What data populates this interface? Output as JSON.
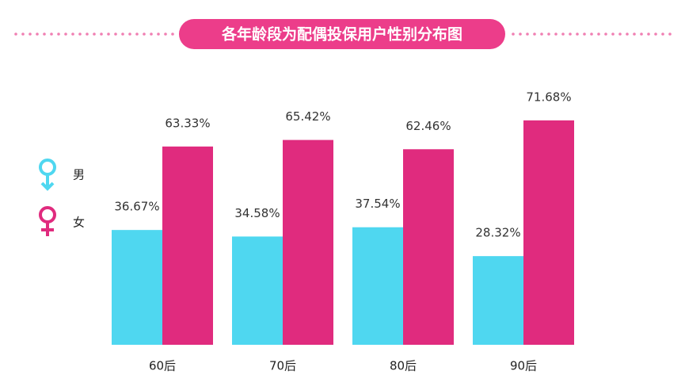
{
  "chart_data": {
    "type": "bar",
    "title": "各年龄段为配偶投保用户性别分布图",
    "categories": [
      "60后",
      "70后",
      "80后",
      "90后"
    ],
    "series": [
      {
        "name": "男",
        "color": "#4fd7f0",
        "values": [
          36.67,
          34.58,
          37.54,
          28.32
        ],
        "value_labels": [
          "36.67%",
          "34.58%",
          "37.54%",
          "28.32%"
        ]
      },
      {
        "name": "女",
        "color": "#e02b7e",
        "values": [
          63.33,
          65.42,
          62.46,
          71.68
        ],
        "value_labels": [
          "63.33%",
          "65.42%",
          "62.46%",
          "71.68%"
        ]
      }
    ],
    "ylim": [
      0,
      80
    ]
  }
}
